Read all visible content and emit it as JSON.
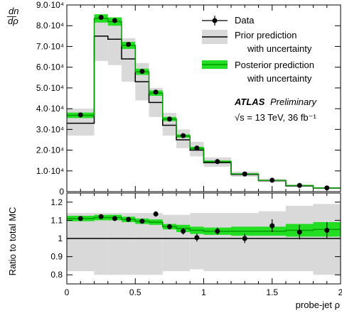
{
  "colors": {
    "data": "#000000",
    "prior_line": "#000000",
    "prior_band": "#d9d9d9",
    "posterior_line": "#009900",
    "posterior_band": "#22dd22"
  },
  "chart_data": [
    {
      "panel": "main",
      "type": "line",
      "ylabel": "dn/dρ",
      "xlim": [
        0,
        2
      ],
      "ylim": [
        0,
        90000
      ],
      "y_ticks": [
        0,
        10000,
        20000,
        30000,
        40000,
        50000,
        60000,
        70000,
        80000,
        90000
      ],
      "y_tick_labels": [
        "0",
        "1.0·10⁴",
        "2.0·10⁴",
        "3.0·10⁴",
        "4.0·10⁴",
        "5.0·10⁴",
        "6.0·10⁴",
        "7.0·10⁴",
        "8.0·10⁴",
        "9.0·10⁴"
      ],
      "bin_edges": [
        0,
        0.2,
        0.3,
        0.4,
        0.5,
        0.6,
        0.7,
        0.8,
        0.9,
        1.0,
        1.2,
        1.4,
        1.6,
        1.8,
        2.0
      ],
      "series": [
        {
          "name": "Data",
          "x": [
            0.1,
            0.25,
            0.35,
            0.45,
            0.55,
            0.65,
            0.75,
            0.85,
            0.95,
            1.1,
            1.3,
            1.5,
            1.7,
            1.9
          ],
          "values": [
            37000,
            84000,
            82500,
            71000,
            58000,
            48000,
            35000,
            27000,
            21000,
            14500,
            8500,
            5500,
            3000,
            1800
          ]
        },
        {
          "name": "Prior prediction with uncertainty",
          "values": [
            33000,
            75000,
            73500,
            64000,
            53000,
            43000,
            32000,
            25000,
            20000,
            14000,
            8300,
            5300,
            2800,
            1700
          ],
          "band_low": [
            27000,
            63000,
            61000,
            53000,
            44000,
            36000,
            27000,
            21000,
            17000,
            12000,
            7200,
            4600,
            2400,
            1450
          ],
          "band_high": [
            40000,
            85000,
            84000,
            74000,
            62000,
            50000,
            38000,
            30000,
            24000,
            16500,
            9600,
            6200,
            3300,
            2000
          ]
        },
        {
          "name": "Posterior prediction with uncertainty",
          "values": [
            36800,
            83500,
            82000,
            70500,
            57800,
            47500,
            35000,
            26800,
            20900,
            14500,
            8500,
            5400,
            2950,
            1780
          ],
          "band_low": [
            35500,
            81500,
            80000,
            68800,
            56300,
            46200,
            34000,
            26000,
            20200,
            14000,
            8200,
            5150,
            2800,
            1680
          ],
          "band_high": [
            38100,
            85500,
            84000,
            72200,
            59300,
            48800,
            36000,
            27600,
            21600,
            15000,
            8800,
            5650,
            3100,
            1880
          ]
        }
      ]
    },
    {
      "panel": "ratio",
      "type": "line",
      "xlabel": "probe-jet ρ",
      "ylabel": "Ratio to total MC",
      "xlim": [
        0,
        2
      ],
      "ylim": [
        0.75,
        1.25
      ],
      "x_ticks": [
        0,
        0.5,
        1,
        1.5,
        2
      ],
      "x_tick_labels": [
        "0",
        "0.5",
        "1",
        "1.5",
        "2"
      ],
      "y_ticks": [
        0.8,
        0.9,
        1.0,
        1.1,
        1.2
      ],
      "y_tick_labels": [
        "0.8",
        "0.9",
        "1",
        "1.1",
        "1.2"
      ],
      "bin_edges": [
        0,
        0.2,
        0.3,
        0.4,
        0.5,
        0.6,
        0.7,
        0.8,
        0.9,
        1.0,
        1.2,
        1.4,
        1.6,
        1.8,
        2.0
      ],
      "series": [
        {
          "name": "Data",
          "x": [
            0.1,
            0.25,
            0.35,
            0.45,
            0.55,
            0.65,
            0.75,
            0.85,
            0.95,
            1.1,
            1.3,
            1.5,
            1.7,
            1.9
          ],
          "values": [
            1.11,
            1.12,
            1.11,
            1.105,
            1.095,
            1.135,
            1.065,
            1.04,
            1.005,
            1.04,
            1.0,
            1.07,
            1.035,
            1.045
          ],
          "err": [
            0.012,
            0.012,
            0.01,
            0.01,
            0.01,
            0.015,
            0.015,
            0.018,
            0.022,
            0.02,
            0.025,
            0.035,
            0.04,
            0.045
          ]
        },
        {
          "name": "Prior prediction with uncertainty",
          "values": [
            1,
            1,
            1,
            1,
            1,
            1,
            1,
            1,
            1,
            1,
            1,
            1,
            1,
            1
          ],
          "band_low": [
            0.82,
            0.8,
            0.8,
            0.8,
            0.8,
            0.8,
            0.82,
            0.82,
            0.83,
            0.82,
            0.82,
            0.82,
            0.82,
            0.8
          ],
          "band_high": [
            1.14,
            1.14,
            1.14,
            1.14,
            1.14,
            1.14,
            1.13,
            1.13,
            1.14,
            1.14,
            1.14,
            1.15,
            1.18,
            1.19
          ]
        },
        {
          "name": "Posterior prediction with uncertainty",
          "values": [
            1.11,
            1.115,
            1.115,
            1.105,
            1.095,
            1.09,
            1.065,
            1.055,
            1.045,
            1.04,
            1.04,
            1.04,
            1.045,
            1.05
          ],
          "band_low": [
            1.095,
            1.1,
            1.1,
            1.09,
            1.08,
            1.075,
            1.05,
            1.035,
            1.025,
            1.02,
            1.015,
            1.015,
            1.01,
            1.01
          ],
          "band_high": [
            1.125,
            1.13,
            1.13,
            1.12,
            1.11,
            1.105,
            1.08,
            1.075,
            1.065,
            1.06,
            1.065,
            1.065,
            1.08,
            1.09
          ]
        }
      ]
    }
  ],
  "legend": {
    "placement": "top-right",
    "data_label": "Data",
    "prior_line1": "Prior prediction",
    "prior_line2": "with uncertainty",
    "posterior_line1": "Posterior prediction",
    "posterior_line2": "with uncertainty"
  },
  "annotation": {
    "experiment": "ATLAS",
    "status": "Preliminary",
    "energy_line": "√s = 13 TeV, 36 fb⁻¹"
  }
}
